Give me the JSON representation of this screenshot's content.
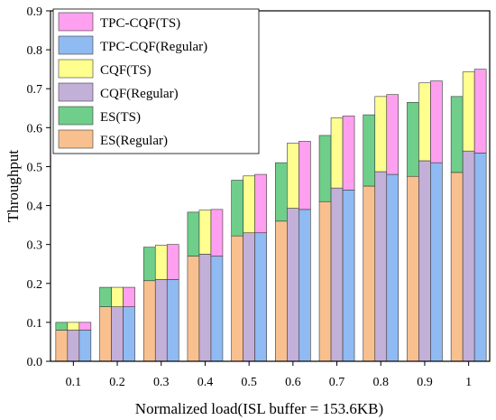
{
  "chart_data": {
    "type": "bar",
    "stacked": true,
    "grouped": true,
    "title": "",
    "xlabel": "Normalized load(ISL buffer = 153.6KB)",
    "ylabel": "Throughput",
    "ylim": [
      0,
      0.9
    ],
    "yticks": [
      "0.0",
      "0.1",
      "0.2",
      "0.3",
      "0.4",
      "0.5",
      "0.6",
      "0.7",
      "0.8",
      "0.9"
    ],
    "categories": [
      "0.1",
      "0.2",
      "0.3",
      "0.4",
      "0.5",
      "0.6",
      "0.7",
      "0.8",
      "0.9",
      "1"
    ],
    "grid": false,
    "legend_position": "top-left",
    "groups": [
      {
        "name": "ES",
        "stack": [
          {
            "name": "ES(Regular)",
            "color": "#f9c08f",
            "values": [
              0.08,
              0.14,
              0.207,
              0.27,
              0.322,
              0.36,
              0.41,
              0.45,
              0.475,
              0.485
            ]
          },
          {
            "name": "ES(TS)",
            "color": "#6fcf8a",
            "values": [
              0.02,
              0.05,
              0.086,
              0.113,
              0.143,
              0.15,
              0.17,
              0.183,
              0.19,
              0.195
            ]
          }
        ]
      },
      {
        "name": "CQF",
        "stack": [
          {
            "name": "CQF(Regular)",
            "color": "#c3b0d9",
            "values": [
              0.08,
              0.14,
              0.21,
              0.275,
              0.33,
              0.393,
              0.445,
              0.487,
              0.515,
              0.54
            ]
          },
          {
            "name": "CQF(TS)",
            "color": "#ffff8f",
            "values": [
              0.02,
              0.05,
              0.088,
              0.113,
              0.146,
              0.167,
              0.18,
              0.193,
              0.2,
              0.203
            ]
          }
        ]
      },
      {
        "name": "TPC-CQF",
        "stack": [
          {
            "name": "TPC-CQF(Regular)",
            "color": "#8fbaf2",
            "values": [
              0.08,
              0.14,
              0.21,
              0.27,
              0.33,
              0.39,
              0.44,
              0.48,
              0.51,
              0.535
            ]
          },
          {
            "name": "TPC-CQF(TS)",
            "color": "#ff9ff0",
            "values": [
              0.02,
              0.05,
              0.09,
              0.12,
              0.15,
              0.175,
              0.19,
              0.205,
              0.21,
              0.215
            ]
          }
        ]
      }
    ],
    "legend": [
      {
        "label": "TPC-CQF(TS)",
        "color": "#ff9ff0"
      },
      {
        "label": "TPC-CQF(Regular)",
        "color": "#8fbaf2"
      },
      {
        "label": "CQF(TS)",
        "color": "#ffff8f"
      },
      {
        "label": "CQF(Regular)",
        "color": "#c3b0d9"
      },
      {
        "label": "ES(TS)",
        "color": "#6fcf8a"
      },
      {
        "label": "ES(Regular)",
        "color": "#f9c08f"
      }
    ]
  }
}
